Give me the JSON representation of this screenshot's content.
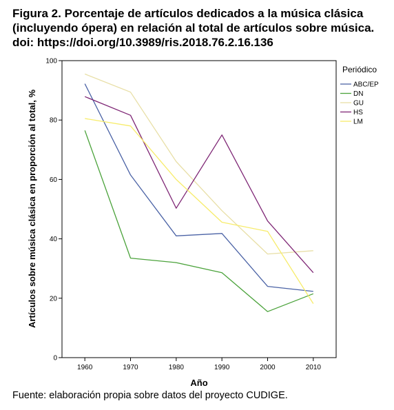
{
  "figure": {
    "title": "Figura 2. Porcentaje de artículos dedicados a la música clásica (incluyendo ópera) en relación al total de artículos sobre música. doi: https://doi.org/10.3989/ris.2018.76.2.16.136",
    "source": "Fuente: elaboración propia sobre datos del proyecto CUDIGE."
  },
  "chart_data": {
    "type": "line",
    "xlabel": "Año",
    "ylabel": "Artículos sobre música clásica en proporción al total, %",
    "x": [
      1960,
      1970,
      1980,
      1990,
      2000,
      2010
    ],
    "xlim": [
      1955,
      2015
    ],
    "ylim": [
      0,
      100
    ],
    "yticks": [
      0,
      20,
      40,
      60,
      80,
      100
    ],
    "grid": false,
    "legend_title": "Periódico",
    "legend_position": "top-right",
    "series": [
      {
        "name": "ABC/EP",
        "color": "#4a62a5",
        "values": [
          92.2,
          61.5,
          41.0,
          41.8,
          24.0,
          22.3
        ]
      },
      {
        "name": "DN",
        "color": "#4aa23a",
        "values": [
          76.5,
          33.5,
          32.0,
          28.6,
          15.5,
          21.5
        ]
      },
      {
        "name": "GU",
        "color": "#e8dfa6",
        "values": [
          95.5,
          89.4,
          66.0,
          49.5,
          34.9,
          36.0
        ]
      },
      {
        "name": "HS",
        "color": "#7e2675",
        "values": [
          87.9,
          81.6,
          50.3,
          75.0,
          46.0,
          28.6
        ]
      },
      {
        "name": "LM",
        "color": "#f7ec6a",
        "values": [
          80.5,
          78.0,
          60.0,
          45.6,
          42.5,
          18.2
        ]
      }
    ]
  }
}
